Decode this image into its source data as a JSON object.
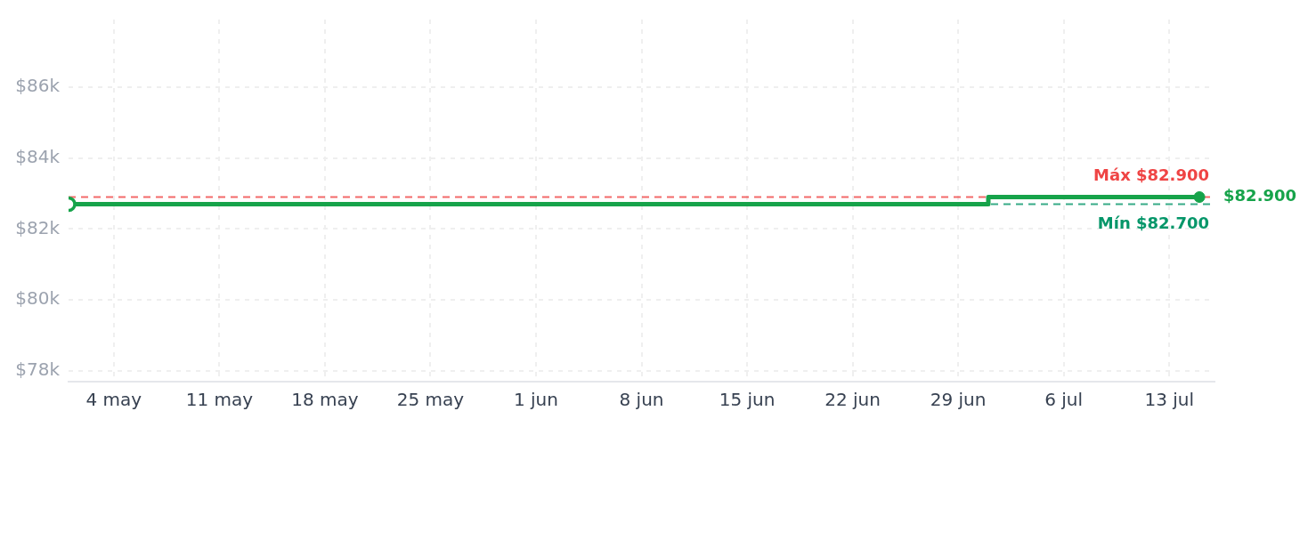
{
  "chart_data": {
    "type": "step",
    "x": [
      "--05-01",
      "--07-01",
      "--07-15"
    ],
    "values": [
      82700,
      82900,
      82900
    ],
    "color": "#16a34a",
    "xlim": [
      "--05-01",
      "--07-16"
    ],
    "xticks": [
      {
        "value": "--05-04",
        "label": "4 may"
      },
      {
        "value": "--05-11",
        "label": "11 may"
      },
      {
        "value": "--05-18",
        "label": "18 may"
      },
      {
        "value": "--05-25",
        "label": "25 may"
      },
      {
        "value": "--06-01",
        "label": "1 jun"
      },
      {
        "value": "--06-08",
        "label": "8 jun"
      },
      {
        "value": "--06-15",
        "label": "15 jun"
      },
      {
        "value": "--06-22",
        "label": "22 jun"
      },
      {
        "value": "--06-29",
        "label": "29 jun"
      },
      {
        "value": "--07-06",
        "label": "6 jul"
      },
      {
        "value": "--07-13",
        "label": "13 jul"
      }
    ],
    "ylim": [
      77700,
      87900
    ],
    "yticks": [
      {
        "value": 78000,
        "label": "$78k"
      },
      {
        "value": 80000,
        "label": "$80k"
      },
      {
        "value": 82000,
        "label": "$82k"
      },
      {
        "value": 84000,
        "label": "$84k"
      },
      {
        "value": 86000,
        "label": "$86k"
      }
    ],
    "ref_lines": [
      {
        "axis": "y",
        "value": 82900,
        "label": "Máx $82.900",
        "color": "#ef4444",
        "line_style": "dashed"
      },
      {
        "axis": "y",
        "value": 82700,
        "label": "Mín $82.700",
        "color": "#059669",
        "line_style": "dashed"
      }
    ],
    "annotations": [
      {
        "text": "$82.900",
        "x": "--07-15",
        "y": 82900
      }
    ],
    "grid": true,
    "legend": false,
    "marker": "circle",
    "line_style": "solid"
  }
}
